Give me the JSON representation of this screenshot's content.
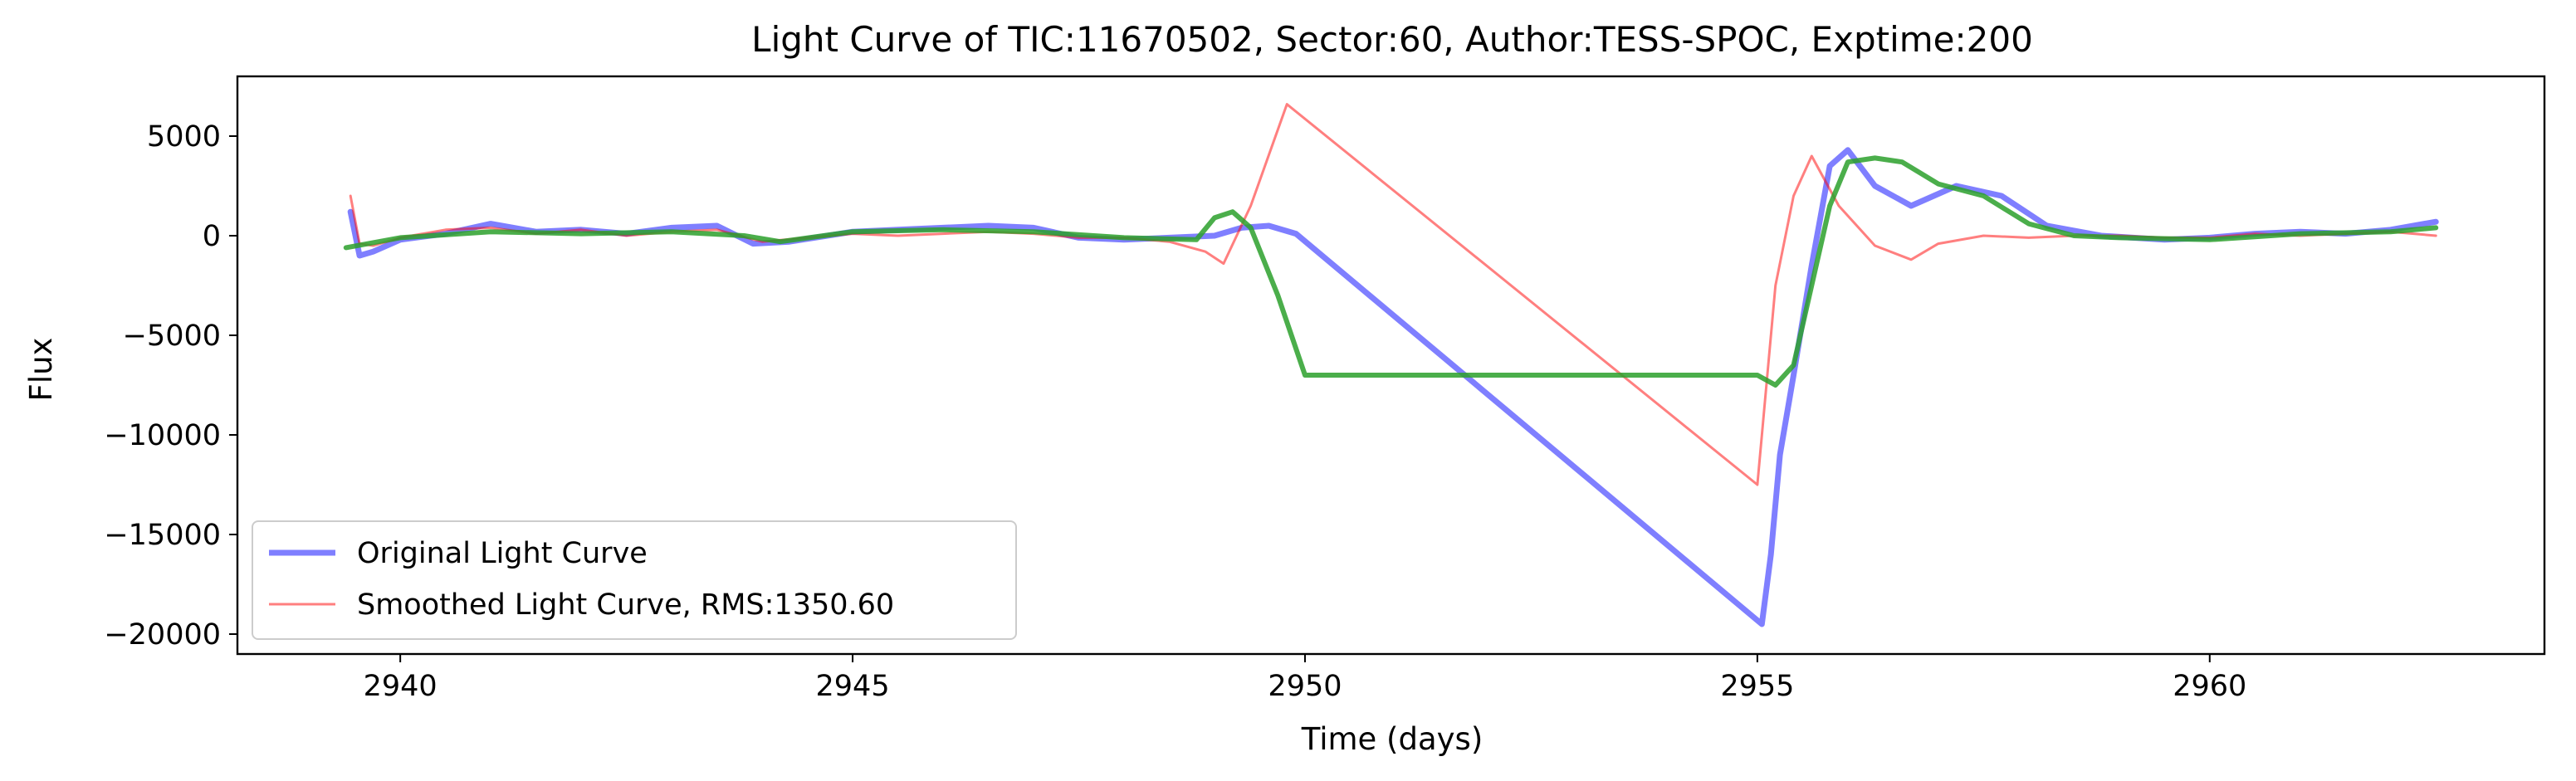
{
  "chart_data": {
    "type": "line",
    "title": "Light Curve of TIC:11670502, Sector:60, Author:TESS-SPOC, Exptime:200",
    "xlabel": "Time (days)",
    "ylabel": "Flux",
    "xlim": [
      2938.2,
      2963.7
    ],
    "ylim": [
      -21000,
      8000
    ],
    "xticks": [
      2940,
      2945,
      2950,
      2955,
      2960
    ],
    "xtick_labels": [
      "2940",
      "2945",
      "2950",
      "2955",
      "2960"
    ],
    "yticks": [
      5000,
      0,
      -5000,
      -10000,
      -15000,
      -20000
    ],
    "ytick_labels": [
      "5000",
      "0",
      "−5000",
      "−10000",
      "−15000",
      "−20000"
    ],
    "grid": false,
    "legend_position": "lower-left",
    "series": [
      {
        "name": "Original Light Curve",
        "color": "#0000ff",
        "opacity": 0.5,
        "x": [
          2939.45,
          2939.55,
          2939.7,
          2940.0,
          2940.5,
          2941.0,
          2941.5,
          2942.0,
          2942.5,
          2943.0,
          2943.5,
          2943.9,
          2944.3,
          2945.0,
          2945.5,
          2946.0,
          2946.5,
          2947.0,
          2947.5,
          2948.0,
          2948.5,
          2949.0,
          2949.3,
          2949.6,
          2949.9,
          2955.05,
          2955.15,
          2955.25,
          2955.4,
          2955.6,
          2955.8,
          2956.0,
          2956.3,
          2956.7,
          2957.2,
          2957.7,
          2958.2,
          2958.8,
          2959.5,
          2960.0,
          2960.5,
          2961.0,
          2961.5,
          2962.0,
          2962.5
        ],
        "y": [
          1200,
          -1000,
          -800,
          -200,
          100,
          600,
          200,
          300,
          100,
          400,
          500,
          -400,
          -300,
          200,
          300,
          400,
          500,
          400,
          -100,
          -200,
          -100,
          0,
          400,
          500,
          100,
          -19500,
          -16000,
          -11000,
          -7000,
          -1500,
          3500,
          4300,
          2500,
          1500,
          2500,
          2000,
          500,
          0,
          -200,
          -100,
          100,
          200,
          100,
          300,
          700
        ]
      },
      {
        "name": "Smoothed Light Curve, RMS:1350.60",
        "color": "#ff0000",
        "opacity": 0.5,
        "x": [
          2939.45,
          2939.55,
          2939.7,
          2940.0,
          2940.5,
          2941.0,
          2941.5,
          2942.0,
          2942.5,
          2943.0,
          2943.5,
          2944.0,
          2944.5,
          2945.0,
          2945.5,
          2946.0,
          2946.5,
          2947.0,
          2947.5,
          2948.0,
          2948.5,
          2948.9,
          2949.1,
          2949.4,
          2949.8,
          2955.0,
          2955.2,
          2955.4,
          2955.6,
          2955.9,
          2956.3,
          2956.7,
          2957.0,
          2957.5,
          2958.0,
          2958.5,
          2959.0,
          2959.5,
          2960.0,
          2960.5,
          2961.0,
          2961.5,
          2962.0,
          2962.5
        ],
        "y": [
          2000,
          -400,
          -500,
          -100,
          300,
          400,
          100,
          300,
          0,
          200,
          300,
          -300,
          -100,
          100,
          0,
          100,
          200,
          100,
          -100,
          -100,
          -300,
          -800,
          -1400,
          1500,
          6600,
          -12500,
          -2500,
          2000,
          4000,
          1500,
          -500,
          -1200,
          -400,
          0,
          -100,
          0,
          0,
          -100,
          -100,
          100,
          0,
          100,
          200,
          0
        ]
      },
      {
        "name": "",
        "color": "#2ca02c",
        "opacity": 0.85,
        "x": [
          2939.4,
          2940.0,
          2941.0,
          2942.0,
          2943.0,
          2943.8,
          2944.2,
          2945.0,
          2946.0,
          2947.0,
          2948.0,
          2948.8,
          2949.0,
          2949.2,
          2949.4,
          2949.7,
          2950.0,
          2955.0,
          2955.2,
          2955.4,
          2955.6,
          2955.8,
          2956.0,
          2956.3,
          2956.6,
          2957.0,
          2957.5,
          2958.0,
          2958.5,
          2959.0,
          2960.0,
          2961.0,
          2962.0,
          2962.5
        ],
        "y": [
          -600,
          -100,
          200,
          100,
          200,
          0,
          -300,
          200,
          300,
          200,
          -100,
          -200,
          900,
          1200,
          400,
          -3000,
          -7000,
          -7000,
          -7500,
          -6500,
          -2500,
          1500,
          3700,
          3900,
          3700,
          2600,
          2000,
          600,
          0,
          -100,
          -200,
          100,
          200,
          400
        ]
      }
    ]
  }
}
